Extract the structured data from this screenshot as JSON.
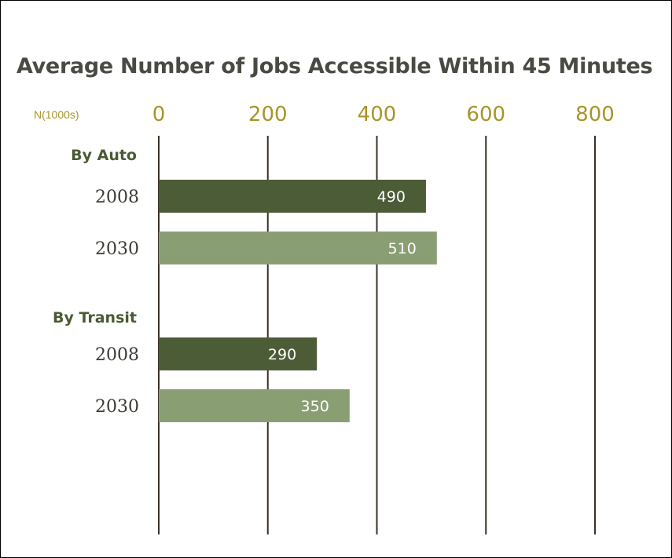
{
  "chart_data": {
    "type": "bar",
    "orientation": "horizontal",
    "title": "Average Number of Jobs Accessible Within 45 Minutes",
    "unit_label": "N(1000s)",
    "xlim": [
      0,
      800
    ],
    "xticks": [
      "0",
      "200",
      "400",
      "600",
      "800"
    ],
    "grid": true,
    "groups": [
      {
        "label": "By Auto",
        "bars": [
          {
            "label": "2008",
            "value": 490,
            "value_label": "490",
            "color": "#4b5c37"
          },
          {
            "label": "2030",
            "value": 510,
            "value_label": "510",
            "color": "#8a9e74"
          }
        ]
      },
      {
        "label": "By Transit",
        "bars": [
          {
            "label": "2008",
            "value": 290,
            "value_label": "290",
            "color": "#4b5c37"
          },
          {
            "label": "2030",
            "value": 350,
            "value_label": "350",
            "color": "#8a9e74"
          }
        ]
      }
    ]
  }
}
